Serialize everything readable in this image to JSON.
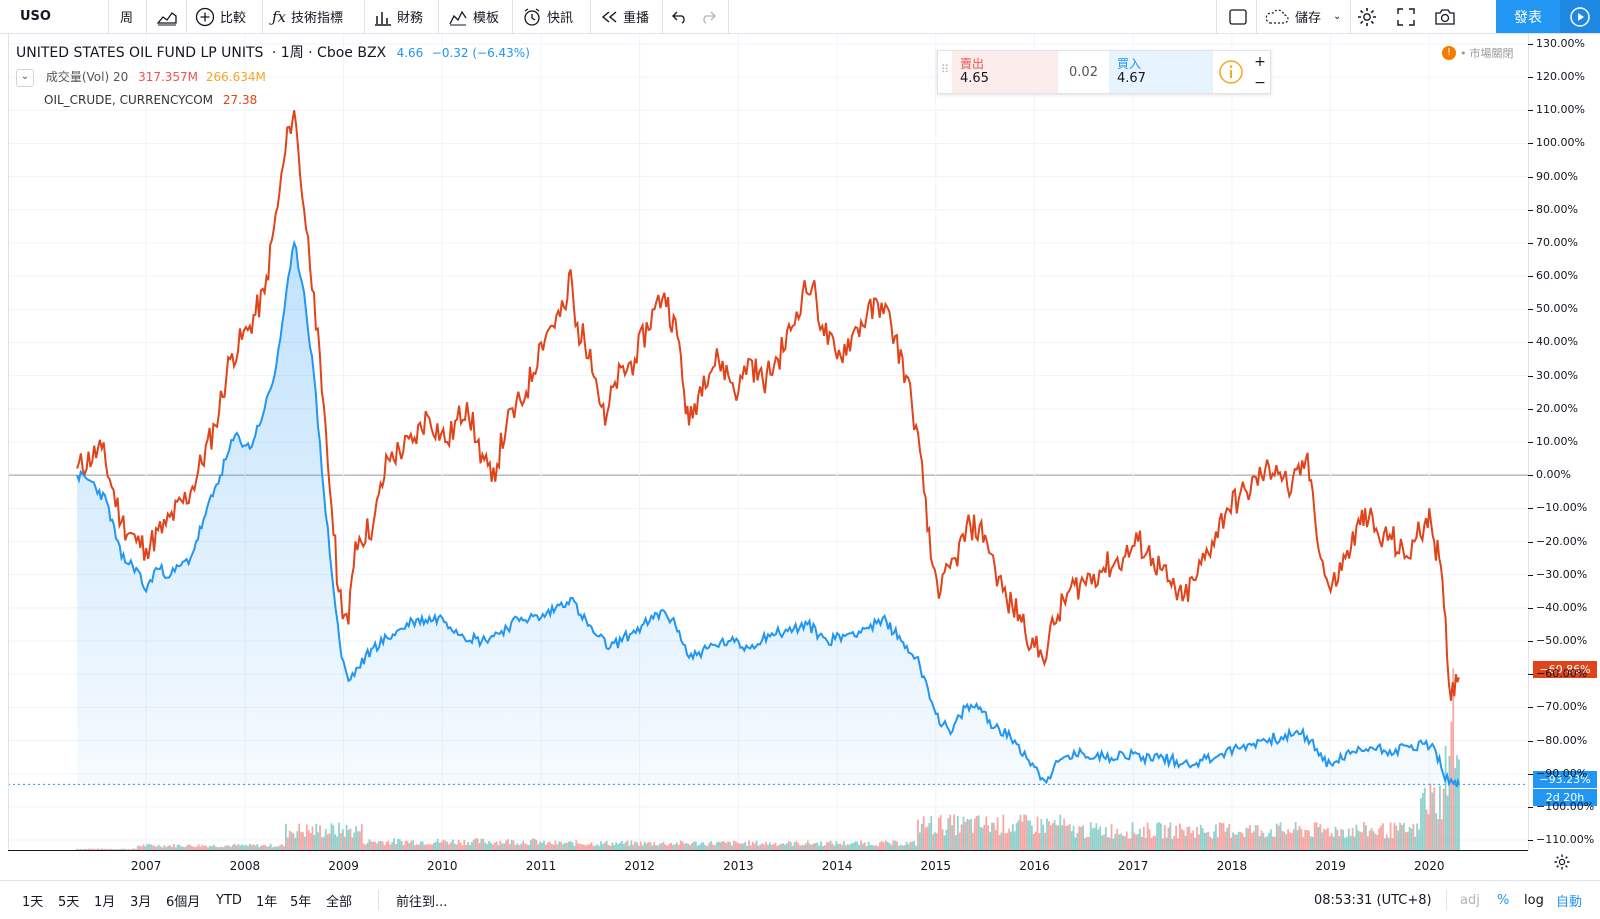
{
  "toolbar": {
    "symbol": "USO",
    "interval": "周",
    "compare": "比較",
    "indicators": "技術指標",
    "financials": "財務",
    "templates": "模板",
    "alert": "快訊",
    "replay": "重播",
    "save": "儲存",
    "publish": "發表"
  },
  "legend": {
    "title": "UNITED STATES OIL FUND LP UNITS",
    "interval_text": "· 1周 · Cboe BZX",
    "price": "4.66",
    "change": "−0.32 (−6.43%)",
    "volume_label": "成交量(Vol) 20",
    "volume_value1": "317.357M",
    "volume_value2": "266.634M",
    "compare_symbol": "OIL_CRUDE, CURRENCYCOM",
    "compare_value": "27.38"
  },
  "quote": {
    "sell_label": "賣出",
    "sell_price": "4.65",
    "spread": "0.02",
    "buy_label": "買入",
    "buy_price": "4.67",
    "plus": "+",
    "minus": "−"
  },
  "market_status": "市場關閉",
  "price_labels": {
    "oil": "−60.86%",
    "uso": "−93.23%",
    "countdown": "2d 20h"
  },
  "colors": {
    "uso": "#2196f3",
    "oil": "#e0441b",
    "vol_up": "#26a69a",
    "vol_down": "#ef5350"
  },
  "bottom": {
    "ranges": [
      "1天",
      "5天",
      "1月",
      "3月",
      "6個月",
      "YTD",
      "1年",
      "5年",
      "全部"
    ],
    "goto": "前往到...",
    "time": "08:53:31 (UTC+8)",
    "adj": "adj",
    "pct": "%",
    "log": "log",
    "auto": "自動"
  },
  "chart_data": {
    "type": "line",
    "y_unit": "%",
    "y_ticks": [
      "130.00%",
      "120.00%",
      "110.00%",
      "100.00%",
      "90.00%",
      "80.00%",
      "70.00%",
      "60.00%",
      "50.00%",
      "40.00%",
      "30.00%",
      "20.00%",
      "10.00%",
      "0.00%",
      "−10.00%",
      "−20.00%",
      "−30.00%",
      "−40.00%",
      "−50.00%",
      "−60.00%",
      "−70.00%",
      "−80.00%",
      "−90.00%",
      "−100.00%",
      "−110.00%"
    ],
    "y_tick_values": [
      130,
      120,
      110,
      100,
      90,
      80,
      70,
      60,
      50,
      40,
      30,
      20,
      10,
      0,
      -10,
      -20,
      -30,
      -40,
      -50,
      -60,
      -70,
      -80,
      -90,
      -100,
      -110
    ],
    "x_ticks": [
      "2007",
      "2008",
      "2009",
      "2010",
      "2011",
      "2012",
      "2013",
      "2014",
      "2015",
      "2016",
      "2017",
      "2018",
      "2019",
      "2020"
    ],
    "x_tick_values": [
      2007,
      2008,
      2009,
      2010,
      2011,
      2012,
      2013,
      2014,
      2015,
      2016,
      2017,
      2018,
      2019,
      2020
    ],
    "x_range": [
      2005.6,
      2021.0
    ],
    "y_range": [
      -113,
      133
    ],
    "series": [
      {
        "name": "OIL_CRUDE, CURRENCYCOM",
        "color": "#e0441b",
        "points": [
          [
            2006.3,
            2
          ],
          [
            2006.55,
            8
          ],
          [
            2006.75,
            -14
          ],
          [
            2006.9,
            -20
          ],
          [
            2007.0,
            -22
          ],
          [
            2007.2,
            -15
          ],
          [
            2007.45,
            -5
          ],
          [
            2007.7,
            15
          ],
          [
            2007.85,
            35
          ],
          [
            2008.05,
            45
          ],
          [
            2008.2,
            55
          ],
          [
            2008.35,
            85
          ],
          [
            2008.45,
            105
          ],
          [
            2008.5,
            110
          ],
          [
            2008.6,
            80
          ],
          [
            2008.7,
            55
          ],
          [
            2008.78,
            25
          ],
          [
            2008.88,
            -10
          ],
          [
            2008.95,
            -35
          ],
          [
            2009.05,
            -45
          ],
          [
            2009.12,
            -20
          ],
          [
            2009.3,
            -15
          ],
          [
            2009.45,
            5
          ],
          [
            2009.7,
            10
          ],
          [
            2009.85,
            18
          ],
          [
            2010.05,
            10
          ],
          [
            2010.25,
            22
          ],
          [
            2010.35,
            10
          ],
          [
            2010.5,
            -2
          ],
          [
            2010.65,
            15
          ],
          [
            2010.85,
            25
          ],
          [
            2011.0,
            40
          ],
          [
            2011.1,
            45
          ],
          [
            2011.25,
            50
          ],
          [
            2011.3,
            62
          ],
          [
            2011.35,
            45
          ],
          [
            2011.5,
            38
          ],
          [
            2011.65,
            15
          ],
          [
            2011.75,
            28
          ],
          [
            2011.95,
            35
          ],
          [
            2012.15,
            50
          ],
          [
            2012.25,
            55
          ],
          [
            2012.4,
            40
          ],
          [
            2012.45,
            25
          ],
          [
            2012.5,
            15
          ],
          [
            2012.65,
            30
          ],
          [
            2012.8,
            35
          ],
          [
            2013.0,
            25
          ],
          [
            2013.1,
            35
          ],
          [
            2013.25,
            28
          ],
          [
            2013.4,
            35
          ],
          [
            2013.55,
            45
          ],
          [
            2013.65,
            55
          ],
          [
            2013.75,
            57
          ],
          [
            2013.85,
            45
          ],
          [
            2014.0,
            35
          ],
          [
            2014.15,
            42
          ],
          [
            2014.3,
            48
          ],
          [
            2014.45,
            52
          ],
          [
            2014.55,
            45
          ],
          [
            2014.7,
            30
          ],
          [
            2014.8,
            15
          ],
          [
            2014.88,
            -5
          ],
          [
            2014.95,
            -25
          ],
          [
            2015.05,
            -35
          ],
          [
            2015.2,
            -25
          ],
          [
            2015.35,
            -15
          ],
          [
            2015.5,
            -18
          ],
          [
            2015.6,
            -28
          ],
          [
            2015.72,
            -38
          ],
          [
            2015.85,
            -42
          ],
          [
            2016.0,
            -52
          ],
          [
            2016.08,
            -55
          ],
          [
            2016.2,
            -45
          ],
          [
            2016.35,
            -35
          ],
          [
            2016.5,
            -32
          ],
          [
            2016.7,
            -28
          ],
          [
            2016.9,
            -25
          ],
          [
            2017.05,
            -20
          ],
          [
            2017.2,
            -25
          ],
          [
            2017.35,
            -32
          ],
          [
            2017.5,
            -38
          ],
          [
            2017.65,
            -30
          ],
          [
            2017.8,
            -20
          ],
          [
            2017.95,
            -10
          ],
          [
            2018.15,
            -5
          ],
          [
            2018.3,
            0
          ],
          [
            2018.45,
            3
          ],
          [
            2018.6,
            -5
          ],
          [
            2018.75,
            5
          ],
          [
            2018.82,
            -5
          ],
          [
            2018.9,
            -25
          ],
          [
            2019.0,
            -35
          ],
          [
            2019.15,
            -25
          ],
          [
            2019.3,
            -15
          ],
          [
            2019.35,
            -10
          ],
          [
            2019.5,
            -20
          ],
          [
            2019.6,
            -18
          ],
          [
            2019.75,
            -25
          ],
          [
            2019.85,
            -20
          ],
          [
            2019.95,
            -15
          ],
          [
            2020.0,
            -10
          ],
          [
            2020.05,
            -20
          ],
          [
            2020.1,
            -25
          ],
          [
            2020.15,
            -40
          ],
          [
            2020.18,
            -55
          ],
          [
            2020.22,
            -68
          ],
          [
            2020.27,
            -60
          ],
          [
            2020.3,
            -61
          ]
        ]
      },
      {
        "name": "UNITED STATES OIL FUND LP UNITS",
        "color": "#2196f3",
        "points": [
          [
            2006.3,
            0
          ],
          [
            2006.45,
            -2
          ],
          [
            2006.6,
            -8
          ],
          [
            2006.75,
            -25
          ],
          [
            2006.9,
            -28
          ],
          [
            2007.0,
            -35
          ],
          [
            2007.1,
            -28
          ],
          [
            2007.25,
            -30
          ],
          [
            2007.45,
            -25
          ],
          [
            2007.6,
            -12
          ],
          [
            2007.75,
            0
          ],
          [
            2007.9,
            12
          ],
          [
            2008.05,
            8
          ],
          [
            2008.2,
            20
          ],
          [
            2008.3,
            30
          ],
          [
            2008.4,
            50
          ],
          [
            2008.5,
            70
          ],
          [
            2008.6,
            55
          ],
          [
            2008.7,
            30
          ],
          [
            2008.8,
            -5
          ],
          [
            2008.9,
            -35
          ],
          [
            2008.98,
            -55
          ],
          [
            2009.05,
            -62
          ],
          [
            2009.15,
            -58
          ],
          [
            2009.3,
            -52
          ],
          [
            2009.5,
            -48
          ],
          [
            2009.7,
            -44
          ],
          [
            2010.0,
            -43
          ],
          [
            2010.2,
            -48
          ],
          [
            2010.4,
            -50
          ],
          [
            2010.6,
            -47
          ],
          [
            2010.8,
            -43
          ],
          [
            2011.0,
            -43
          ],
          [
            2011.15,
            -40
          ],
          [
            2011.3,
            -37
          ],
          [
            2011.4,
            -42
          ],
          [
            2011.55,
            -48
          ],
          [
            2011.7,
            -52
          ],
          [
            2011.9,
            -48
          ],
          [
            2012.1,
            -44
          ],
          [
            2012.25,
            -41
          ],
          [
            2012.4,
            -47
          ],
          [
            2012.5,
            -55
          ],
          [
            2012.7,
            -52
          ],
          [
            2012.9,
            -50
          ],
          [
            2013.1,
            -52
          ],
          [
            2013.3,
            -48
          ],
          [
            2013.5,
            -47
          ],
          [
            2013.7,
            -45
          ],
          [
            2013.9,
            -50
          ],
          [
            2014.1,
            -48
          ],
          [
            2014.3,
            -46
          ],
          [
            2014.5,
            -44
          ],
          [
            2014.65,
            -50
          ],
          [
            2014.8,
            -55
          ],
          [
            2014.9,
            -62
          ],
          [
            2015.0,
            -72
          ],
          [
            2015.15,
            -78
          ],
          [
            2015.3,
            -70
          ],
          [
            2015.45,
            -70
          ],
          [
            2015.6,
            -76
          ],
          [
            2015.8,
            -80
          ],
          [
            2016.0,
            -88
          ],
          [
            2016.1,
            -92
          ],
          [
            2016.3,
            -85
          ],
          [
            2016.5,
            -84
          ],
          [
            2016.7,
            -85
          ],
          [
            2016.9,
            -84
          ],
          [
            2017.1,
            -85
          ],
          [
            2017.3,
            -85
          ],
          [
            2017.5,
            -87
          ],
          [
            2017.7,
            -86
          ],
          [
            2017.9,
            -84
          ],
          [
            2018.1,
            -82
          ],
          [
            2018.3,
            -80
          ],
          [
            2018.5,
            -79
          ],
          [
            2018.7,
            -78
          ],
          [
            2018.8,
            -80
          ],
          [
            2018.92,
            -86
          ],
          [
            2019.0,
            -87
          ],
          [
            2019.2,
            -84
          ],
          [
            2019.4,
            -82
          ],
          [
            2019.6,
            -83
          ],
          [
            2019.8,
            -82
          ],
          [
            2019.95,
            -81
          ],
          [
            2020.05,
            -82
          ],
          [
            2020.12,
            -88
          ],
          [
            2020.2,
            -93
          ],
          [
            2020.28,
            -94
          ],
          [
            2020.3,
            -93
          ]
        ]
      }
    ]
  }
}
